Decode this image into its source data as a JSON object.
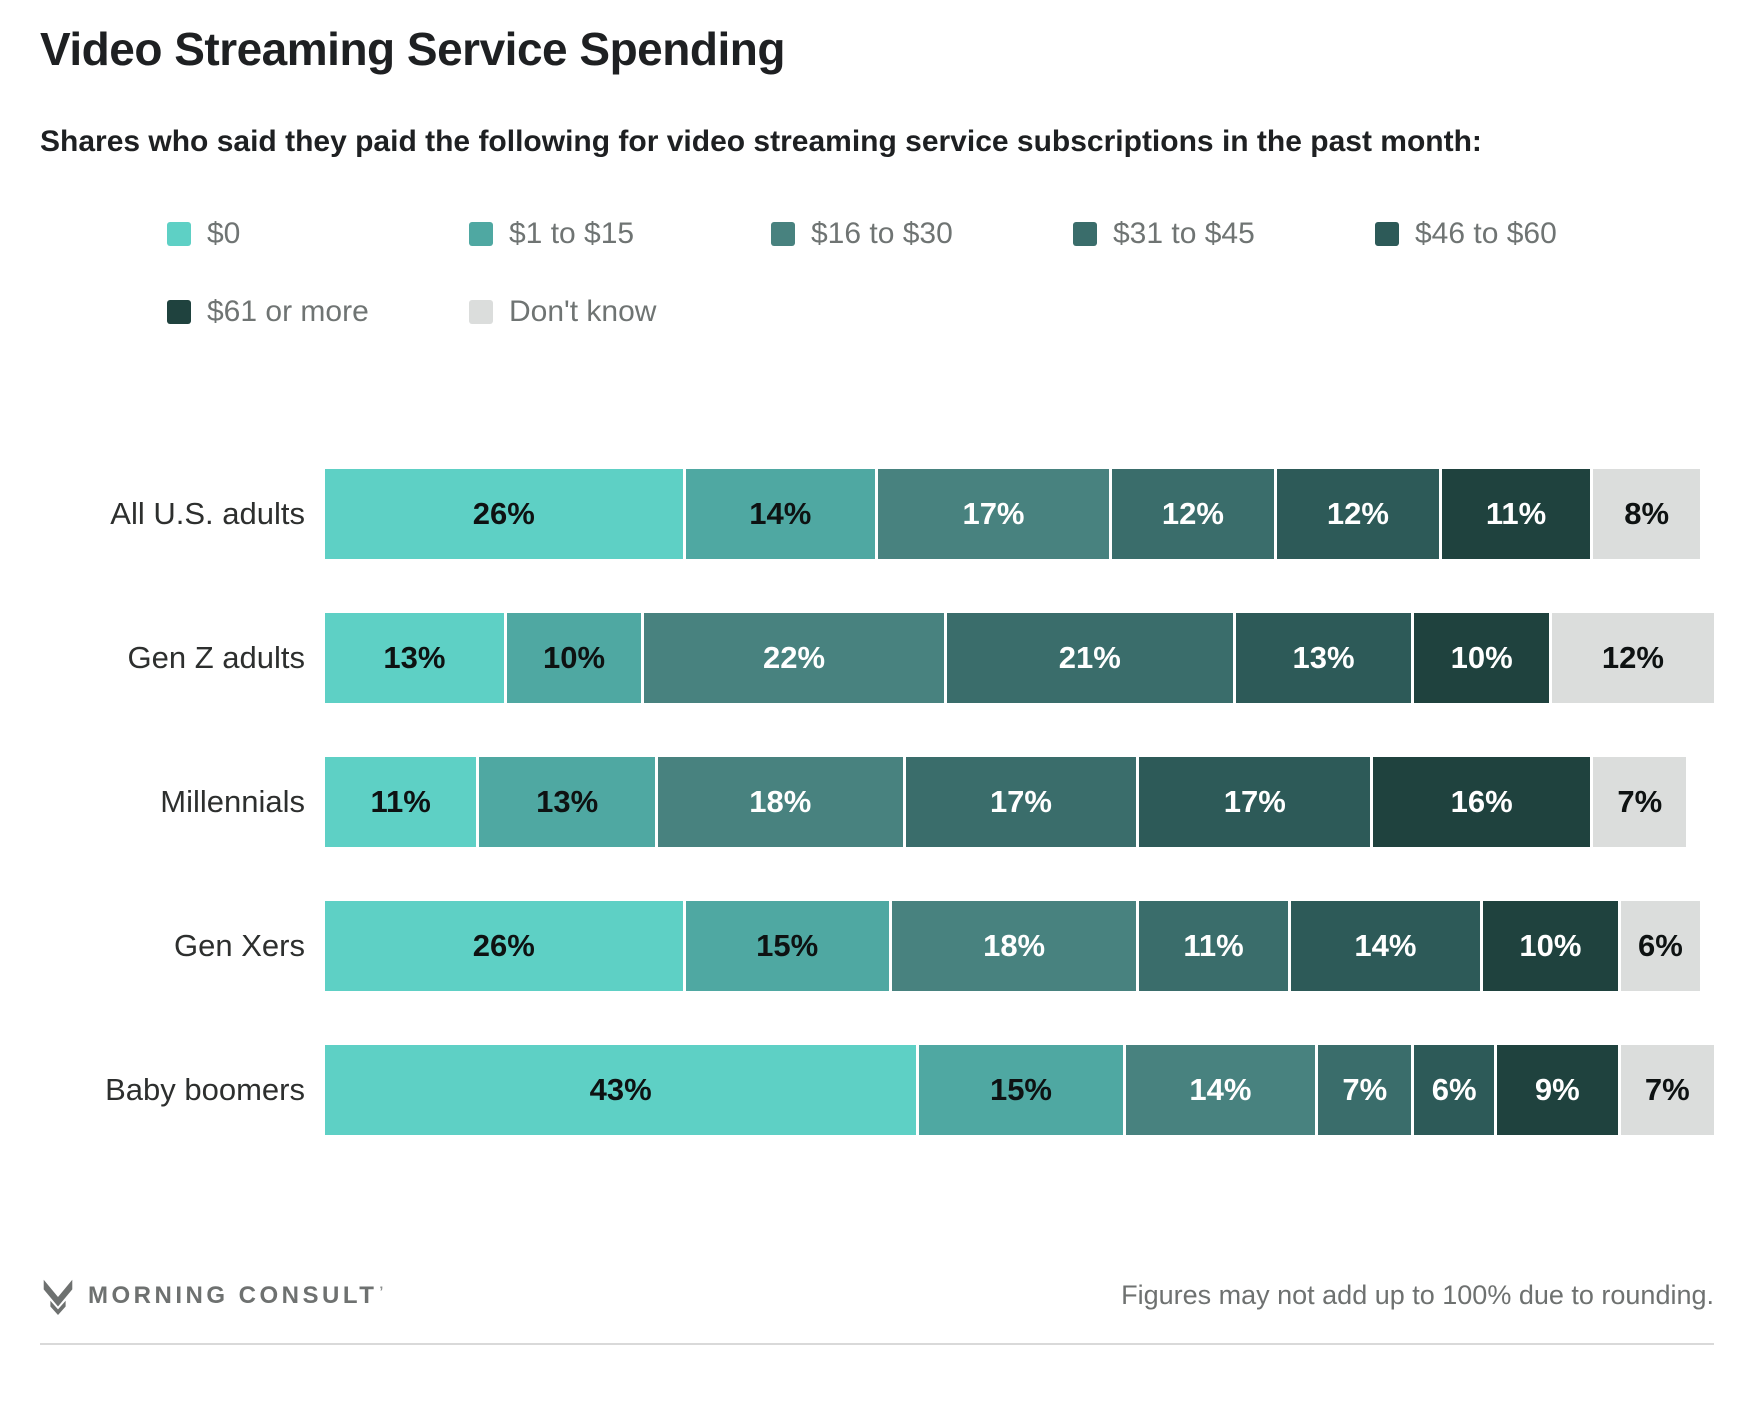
{
  "title": "Video Streaming Service Spending",
  "subtitle": "Shares who said they paid the following for video streaming service subscriptions in the past month:",
  "chart_data": {
    "type": "bar",
    "orientation": "horizontal",
    "stacked": true,
    "axis_max": 101,
    "value_suffix": "%",
    "legend_position": "top",
    "grid": false,
    "series_labels": [
      "$0",
      "$1 to $15",
      "$16 to $30",
      "$31 to $45",
      "$46 to $60",
      "$61 or more",
      "Don't know"
    ],
    "series_colors": [
      "#5ed0c5",
      "#4fa8a2",
      "#48827f",
      "#3a6d6b",
      "#2d5a58",
      "#1f423e",
      "#dbdddc"
    ],
    "label_text_colors": [
      "#0e1212",
      "#0e1212",
      "#ffffff",
      "#ffffff",
      "#ffffff",
      "#ffffff",
      "#0e1212"
    ],
    "categories": [
      "All U.S. adults",
      "Gen Z adults",
      "Millennials",
      "Gen Xers",
      "Baby boomers"
    ],
    "rows": [
      {
        "category": "All U.S. adults",
        "values": [
          26,
          14,
          17,
          12,
          12,
          11,
          8
        ],
        "labels": [
          "26%",
          "14%",
          "17%",
          "12%",
          "12%",
          "11%",
          "8%"
        ]
      },
      {
        "category": "Gen Z adults",
        "values": [
          13,
          10,
          22,
          21,
          13,
          10,
          12
        ],
        "labels": [
          "13%",
          "10%",
          "22%",
          "21%",
          "13%",
          "10%",
          "12%"
        ]
      },
      {
        "category": "Millennials",
        "values": [
          11,
          13,
          18,
          17,
          17,
          16,
          7
        ],
        "labels": [
          "11%",
          "13%",
          "18%",
          "17%",
          "17%",
          "16%",
          "7%"
        ]
      },
      {
        "category": "Gen Xers",
        "values": [
          26,
          15,
          18,
          11,
          14,
          10,
          6
        ],
        "labels": [
          "26%",
          "15%",
          "18%",
          "11%",
          "14%",
          "10%",
          "6%"
        ]
      },
      {
        "category": "Baby boomers",
        "values": [
          43,
          15,
          14,
          7,
          6,
          9,
          7
        ],
        "labels": [
          "43%",
          "15%",
          "14%",
          "7%",
          "6%",
          "9%",
          "7%"
        ]
      }
    ]
  },
  "footer": {
    "brand": "MORNING CONSULT",
    "brand_tm": "’",
    "note": "Figures may not add up to 100% due to rounding."
  }
}
